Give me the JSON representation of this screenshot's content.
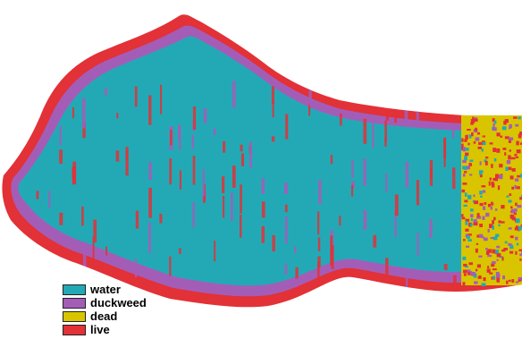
{
  "map": {
    "colors": {
      "water": "#23a9b6",
      "duckweed": "#a45db7",
      "dead": "#d8c500",
      "live": "#e23137",
      "background": "#ffffff"
    }
  },
  "legend": {
    "items": [
      {
        "key": "water",
        "label": "water",
        "color": "#23a9b6"
      },
      {
        "key": "duckweed",
        "label": "duckweed",
        "color": "#a45db7"
      },
      {
        "key": "dead",
        "label": "dead",
        "color": "#d8c500"
      },
      {
        "key": "live",
        "label": "live",
        "color": "#e23137"
      }
    ]
  }
}
